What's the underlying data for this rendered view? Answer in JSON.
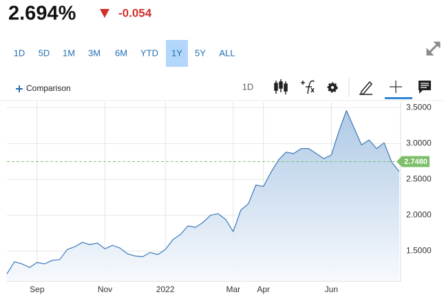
{
  "header": {
    "price": "2.694%",
    "change": "-0.054"
  },
  "ranges": {
    "items": [
      "1D",
      "5D",
      "1M",
      "3M",
      "6M",
      "YTD",
      "1Y",
      "5Y",
      "ALL"
    ],
    "selected": "1Y"
  },
  "toolbar": {
    "comparison": "Comparison",
    "interval": "1D"
  },
  "chart_data": {
    "type": "area",
    "color": "#3a78b7",
    "categories": [
      null,
      null,
      null,
      null,
      "Sep",
      null,
      null,
      null,
      null,
      null,
      null,
      null,
      null,
      "Nov",
      null,
      null,
      null,
      null,
      null,
      null,
      null,
      "2022",
      null,
      null,
      null,
      null,
      null,
      null,
      null,
      null,
      "Mar",
      null,
      null,
      null,
      "Apr",
      null,
      null,
      null,
      null,
      null,
      null,
      null,
      null,
      "Jun",
      null,
      null,
      null,
      null,
      null,
      null,
      null,
      null,
      null
    ],
    "values": [
      1.18,
      1.35,
      1.32,
      1.27,
      1.34,
      1.32,
      1.37,
      1.38,
      1.52,
      1.56,
      1.62,
      1.59,
      1.61,
      1.53,
      1.58,
      1.54,
      1.46,
      1.43,
      1.42,
      1.48,
      1.45,
      1.52,
      1.66,
      1.73,
      1.85,
      1.83,
      1.9,
      2.0,
      2.02,
      1.94,
      1.77,
      2.07,
      2.16,
      2.42,
      2.4,
      2.6,
      2.77,
      2.88,
      2.86,
      2.93,
      2.93,
      2.86,
      2.79,
      2.84,
      3.17,
      3.46,
      3.22,
      2.98,
      3.05,
      2.93,
      3.01,
      2.74,
      2.61
    ],
    "ylim": [
      1.08,
      3.58
    ],
    "yticks": [
      {
        "value": 1.5,
        "label": "1.5000"
      },
      {
        "value": 2,
        "label": "2.0000"
      },
      {
        "value": 2.5,
        "label": "2.5000"
      },
      {
        "value": 3,
        "label": "3.0000"
      },
      {
        "value": 3.5,
        "label": "3.5000"
      }
    ],
    "reference_line": {
      "value": 2.748,
      "label": "2.7480",
      "color": "#7dbf6a"
    },
    "grid": true
  }
}
